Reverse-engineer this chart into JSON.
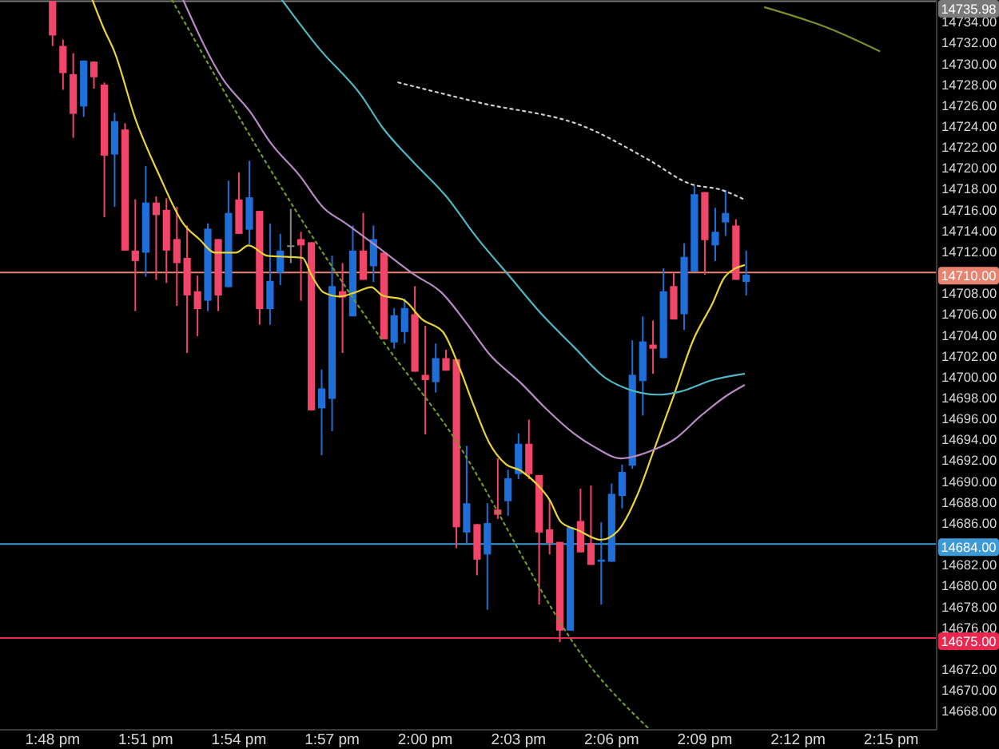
{
  "chart_data": {
    "type": "candlestick",
    "xlim": [
      13.7718,
      14.2744
    ],
    "xticks": [
      {
        "value": 13.8,
        "label": "1:48 pm"
      },
      {
        "value": 13.85,
        "label": "1:51 pm"
      },
      {
        "value": 13.9,
        "label": "1:54 pm"
      },
      {
        "value": 13.95,
        "label": "1:57 pm"
      },
      {
        "value": 14.0,
        "label": "2:00 pm"
      },
      {
        "value": 14.05,
        "label": "2:03 pm"
      },
      {
        "value": 14.1,
        "label": "2:06 pm"
      },
      {
        "value": 14.15,
        "label": "2:09 pm"
      },
      {
        "value": 14.2,
        "label": "2:12 pm"
      },
      {
        "value": 14.25,
        "label": "2:15 pm"
      }
    ],
    "ylim": [
      14666.2,
      14736.1
    ],
    "yticks": [
      {
        "value": 14668,
        "label": "14668.00"
      },
      {
        "value": 14670,
        "label": "14670.00"
      },
      {
        "value": 14672,
        "label": "14672.00"
      },
      {
        "value": 14676,
        "label": "14676.00"
      },
      {
        "value": 14678,
        "label": "14678.00"
      },
      {
        "value": 14680,
        "label": "14680.00"
      },
      {
        "value": 14682,
        "label": "14682.00"
      },
      {
        "value": 14686,
        "label": "14686.00"
      },
      {
        "value": 14688,
        "label": "14688.00"
      },
      {
        "value": 14690,
        "label": "14690.00"
      },
      {
        "value": 14692,
        "label": "14692.00"
      },
      {
        "value": 14694,
        "label": "14694.00"
      },
      {
        "value": 14696,
        "label": "14696.00"
      },
      {
        "value": 14698,
        "label": "14698.00"
      },
      {
        "value": 14700,
        "label": "14700.00"
      },
      {
        "value": 14702,
        "label": "14702.00"
      },
      {
        "value": 14704,
        "label": "14704.00"
      },
      {
        "value": 14706,
        "label": "14706.00"
      },
      {
        "value": 14708,
        "label": "14708.00"
      },
      {
        "value": 14712,
        "label": "14712.00"
      },
      {
        "value": 14714,
        "label": "14714.00"
      },
      {
        "value": 14716,
        "label": "14716.00"
      },
      {
        "value": 14718,
        "label": "14718.00"
      },
      {
        "value": 14720,
        "label": "14720.00"
      },
      {
        "value": 14722,
        "label": "14722.00"
      },
      {
        "value": 14724,
        "label": "14724.00"
      },
      {
        "value": 14726,
        "label": "14726.00"
      },
      {
        "value": 14728,
        "label": "14728.00"
      },
      {
        "value": 14730,
        "label": "14730.00"
      },
      {
        "value": 14732,
        "label": "14732.00"
      },
      {
        "value": 14734,
        "label": "14734.00"
      }
    ],
    "ref_lines": [
      {
        "axis": "y",
        "value": 14735.98,
        "label": "14735.98",
        "color": "#7a7a7a"
      },
      {
        "axis": "y",
        "value": 14710,
        "label": "14710.00",
        "color": "#e8836f"
      },
      {
        "axis": "y",
        "value": 14684,
        "label": "14684.00",
        "color": "#3d9ad6"
      },
      {
        "axis": "y",
        "value": 14675,
        "label": "14675.00",
        "color": "#e8284f"
      }
    ],
    "series": [
      {
        "type": "candlestick",
        "x": [
          13.8,
          13.8056,
          13.8111,
          13.8167,
          13.8222,
          13.8278,
          13.8333,
          13.8389,
          13.8444,
          13.85,
          13.8556,
          13.8611,
          13.8667,
          13.8722,
          13.8778,
          13.8833,
          13.8889,
          13.8944,
          13.9,
          13.9056,
          13.9111,
          13.9167,
          13.9222,
          13.9278,
          13.9333,
          13.9389,
          13.9444,
          13.95,
          13.9556,
          13.9611,
          13.9667,
          13.9722,
          13.9778,
          13.9833,
          13.9889,
          13.9944,
          14.0,
          14.0056,
          14.0111,
          14.0167,
          14.0222,
          14.0278,
          14.0333,
          14.0389,
          14.0444,
          14.05,
          14.0556,
          14.0611,
          14.0667,
          14.0722,
          14.0778,
          14.0833,
          14.0889,
          14.0944,
          14.1,
          14.1056,
          14.1111,
          14.1167,
          14.1222,
          14.1278,
          14.1333,
          14.1389,
          14.1444,
          14.15,
          14.1556,
          14.1611,
          14.1667,
          14.1722
        ],
        "ohlc": [
          [
            14736.0,
            14736.0,
            14731.7,
            14732.7
          ],
          [
            14731.7,
            14732.3,
            14727.5,
            14729.1
          ],
          [
            14729.0,
            14731.0,
            14722.9,
            14725.2
          ],
          [
            14725.9,
            14730.3,
            14724.9,
            14730.3
          ],
          [
            14730.2,
            14730.2,
            14727.6,
            14728.7
          ],
          [
            14728.0,
            14728.2,
            14715.3,
            14721.2
          ],
          [
            14721.3,
            14725.3,
            14716.3,
            14724.5
          ],
          [
            14723.7,
            14724.3,
            14712.1,
            14712.1
          ],
          [
            14712.1,
            14717.0,
            14706.3,
            14711.1
          ],
          [
            14711.9,
            14720.2,
            14709.6,
            14716.7
          ],
          [
            14716.7,
            14717.3,
            14709.3,
            14715.5
          ],
          [
            14716.0,
            14717.1,
            14709.0,
            14712.1
          ],
          [
            14713.2,
            14716.3,
            14706.8,
            14710.9
          ],
          [
            14711.4,
            14714.5,
            14702.3,
            14707.8
          ],
          [
            14708.2,
            14709.7,
            14703.9,
            14706.5
          ],
          [
            14707.3,
            14714.7,
            14706.3,
            14714.2
          ],
          [
            14713.2,
            14713.2,
            14706.3,
            14707.8
          ],
          [
            14708.6,
            14718.8,
            14708.6,
            14715.7
          ],
          [
            14717.0,
            14719.6,
            14713.7,
            14713.7
          ],
          [
            14714.1,
            14720.7,
            14712.7,
            14717.2
          ],
          [
            14715.9,
            14715.9,
            14705.0,
            14706.5
          ],
          [
            14706.5,
            14714.7,
            14705.0,
            14709.2
          ],
          [
            14710.0,
            14713.7,
            14708.8,
            14712.1
          ],
          [
            14712.6,
            14716.1,
            14710.9,
            14712.6
          ],
          [
            14713.2,
            14713.9,
            14707.3,
            14712.6
          ],
          [
            14712.9,
            14712.9,
            14696.8,
            14696.8
          ],
          [
            14697.0,
            14700.7,
            14692.5,
            14698.9
          ],
          [
            14697.9,
            14711.6,
            14694.8,
            14708.7
          ],
          [
            14708.2,
            14710.9,
            14702.3,
            14707.6
          ],
          [
            14705.8,
            14714.5,
            14705.8,
            14712.1
          ],
          [
            14712.1,
            14715.7,
            14709.3,
            14709.3
          ],
          [
            14710.6,
            14714.5,
            14709.1,
            14713.2
          ],
          [
            14711.9,
            14711.9,
            14703.6,
            14703.6
          ],
          [
            14703.3,
            14706.6,
            14702.7,
            14705.9
          ],
          [
            14704.3,
            14707.5,
            14703.2,
            14706.6
          ],
          [
            14706.0,
            14708.7,
            14700.5,
            14700.5
          ],
          [
            14700.2,
            14704.9,
            14694.5,
            14699.7
          ],
          [
            14699.5,
            14703.2,
            14698.5,
            14701.8
          ],
          [
            14701.8,
            14702.6,
            14700.6,
            14700.6
          ],
          [
            14701.7,
            14701.7,
            14683.6,
            14685.6
          ],
          [
            14685.1,
            14693.4,
            14684.1,
            14687.9
          ],
          [
            14685.9,
            14685.9,
            14681.0,
            14682.5
          ],
          [
            14683.0,
            14687.9,
            14677.7,
            14686.0
          ],
          [
            14687.3,
            14692.2,
            14686.4,
            14686.8
          ],
          [
            14688.1,
            14691.1,
            14686.7,
            14690.3
          ],
          [
            14690.7,
            14694.6,
            14690.2,
            14693.6
          ],
          [
            14693.6,
            14695.9,
            14690.2,
            14690.7
          ],
          [
            14690.6,
            14690.6,
            14678.2,
            14685.1
          ],
          [
            14685.4,
            14688.2,
            14683.0,
            14684.1
          ],
          [
            14684.2,
            14684.2,
            14674.6,
            14675.7
          ],
          [
            14675.7,
            14685.6,
            14675.7,
            14685.6
          ],
          [
            14686.2,
            14689.3,
            14683.2,
            14683.2
          ],
          [
            14684.1,
            14689.6,
            14682.0,
            14682.0
          ],
          [
            14682.3,
            14686.1,
            14678.2,
            14682.5
          ],
          [
            14682.3,
            14689.8,
            14682.3,
            14688.8
          ],
          [
            14688.6,
            14691.6,
            14687.4,
            14690.9
          ],
          [
            14691.5,
            14703.5,
            14691.2,
            14700.2
          ],
          [
            14699.6,
            14705.8,
            14696.3,
            14703.4
          ],
          [
            14703.1,
            14705.4,
            14700.3,
            14702.7
          ],
          [
            14701.8,
            14710.4,
            14701.8,
            14708.2
          ],
          [
            14708.7,
            14710.1,
            14705.5,
            14705.5
          ],
          [
            14706.0,
            14712.8,
            14704.5,
            14711.5
          ],
          [
            14710.1,
            14718.3,
            14710.1,
            14717.5
          ],
          [
            14717.7,
            14717.7,
            14709.8,
            14713.1
          ],
          [
            14712.6,
            14716.2,
            14711.1,
            14713.9
          ],
          [
            14714.8,
            14717.9,
            14713.5,
            14715.7
          ],
          [
            14714.5,
            14715.1,
            14709.3,
            14709.3
          ],
          [
            14709.1,
            14712.1,
            14707.8,
            14709.8
          ]
        ],
        "colors": [
          "#f2456a",
          "#f2456a",
          "#f2456a",
          "#1e6fd9",
          "#f2456a",
          "#f2456a",
          "#1e6fd9",
          "#f2456a",
          "#f2456a",
          "#1e6fd9",
          "#f2456a",
          "#f2456a",
          "#f2456a",
          "#f2456a",
          "#f2456a",
          "#1e6fd9",
          "#f2456a",
          "#1e6fd9",
          "#f2456a",
          "#1e6fd9",
          "#f2456a",
          "#1e6fd9",
          "#1e6fd9",
          "#8a8a8a",
          "#f2456a",
          "#f2456a",
          "#1e6fd9",
          "#1e6fd9",
          "#f2456a",
          "#1e6fd9",
          "#f2456a",
          "#1e6fd9",
          "#f2456a",
          "#1e6fd9",
          "#1e6fd9",
          "#f2456a",
          "#f2456a",
          "#1e6fd9",
          "#f2456a",
          "#f2456a",
          "#1e6fd9",
          "#f2456a",
          "#1e6fd9",
          "#f2456a",
          "#1e6fd9",
          "#1e6fd9",
          "#f2456a",
          "#f2456a",
          "#f2456a",
          "#f2456a",
          "#1e6fd9",
          "#f2456a",
          "#f2456a",
          "#1e6fd9",
          "#1e6fd9",
          "#1e6fd9",
          "#1e6fd9",
          "#1e6fd9",
          "#f2456a",
          "#1e6fd9",
          "#f2456a",
          "#1e6fd9",
          "#1e6fd9",
          "#f2456a",
          "#1e6fd9",
          "#1e6fd9",
          "#f2456a",
          "#1e6fd9"
        ]
      },
      {
        "type": "line",
        "color": "#e8d43a",
        "line_style": "solid",
        "x": [
          13.8214,
          13.8274,
          13.8333,
          13.8445,
          13.8573,
          13.8701,
          13.8787,
          13.8872,
          13.8983,
          13.9052,
          13.9154,
          13.9257,
          13.9342,
          13.9385,
          13.9454,
          13.9539,
          13.9625,
          13.971,
          13.977,
          13.9881,
          13.9984,
          14.0095,
          14.0172,
          14.0257,
          14.0343,
          14.0429,
          14.0514,
          14.06,
          14.0668,
          14.0728,
          14.0822,
          14.0942,
          14.1036,
          14.1138,
          14.1223,
          14.1335,
          14.1437,
          14.154,
          14.1608,
          14.1711
        ],
        "values": [
          14736.1,
          14733.4,
          14731.1,
          14724.7,
          14719.3,
          14714.7,
          14713.2,
          14711.9,
          14711.9,
          14712.6,
          14711.6,
          14711.5,
          14711.4,
          14709.9,
          14708.1,
          14707.7,
          14708.1,
          14708.6,
          14707.8,
          14707.4,
          14705.5,
          14704.3,
          14701.4,
          14697.4,
          14693.7,
          14691.7,
          14691.0,
          14689.7,
          14688.2,
          14686.1,
          14685.3,
          14684.4,
          14685.3,
          14688.7,
          14692.8,
          14698.3,
          14703.5,
          14707.0,
          14709.6,
          14710.7
        ]
      },
      {
        "type": "line",
        "color": "#b88ac4",
        "line_style": "solid",
        "x": [
          13.8701,
          13.8915,
          13.906,
          13.9171,
          13.9325,
          13.9454,
          13.9574,
          13.977,
          13.9941,
          14.0086,
          14.0223,
          14.0343,
          14.0514,
          14.0651,
          14.0796,
          14.0907,
          14.1052,
          14.1223,
          14.1335,
          14.148,
          14.1625,
          14.1711
        ],
        "values": [
          14736.1,
          14728.5,
          14725.4,
          14722.4,
          14719.3,
          14716.2,
          14714.7,
          14712.1,
          14709.8,
          14708.1,
          14705.1,
          14702.2,
          14699.4,
          14696.9,
          14694.6,
          14693.3,
          14692.2,
          14693.0,
          14694.0,
          14696.3,
          14698.3,
          14699.2
        ]
      },
      {
        "type": "line",
        "color": "#4fb6c2",
        "line_style": "solid",
        "x": [
          13.9231,
          13.9428,
          13.9659,
          13.977,
          13.9924,
          14.0112,
          14.0283,
          14.0454,
          14.0625,
          14.0796,
          14.0967,
          14.1078,
          14.1249,
          14.1369,
          14.154,
          14.1711
        ],
        "values": [
          14736.1,
          14731.5,
          14726.9,
          14723.9,
          14720.8,
          14717.3,
          14713.2,
          14709.6,
          14706.0,
          14702.9,
          14699.9,
          14698.9,
          14698.3,
          14698.6,
          14699.7,
          14700.3
        ]
      },
      {
        "type": "line",
        "color": "#6f9a2a",
        "line_style": "dotted",
        "x": [
          13.8641,
          13.9257,
          13.977,
          14.0112,
          14.0907,
          14.1206
        ],
        "values": [
          14736.1,
          14717.3,
          14703.5,
          14695.3,
          14671.8,
          14666.2
        ]
      },
      {
        "type": "line",
        "color": "#cfcfcf",
        "line_style": "dotted",
        "x": [
          13.9855,
          14.0283,
          14.0864,
          14.1198,
          14.142,
          14.1591,
          14.1711
        ],
        "values": [
          14728.2,
          14726.3,
          14723.9,
          14720.8,
          14718.5,
          14717.9,
          14717.0
        ]
      },
      {
        "type": "line",
        "color": "#7d8f2c",
        "line_style": "solid",
        "x": [
          14.1822,
          14.2164,
          14.2437
        ],
        "values": [
          14735.4,
          14733.4,
          14731.2
        ]
      }
    ]
  }
}
